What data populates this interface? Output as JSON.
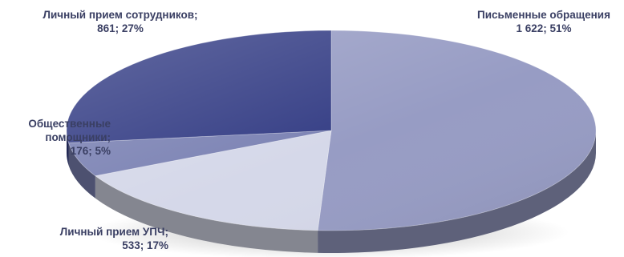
{
  "chart_data": {
    "type": "pie",
    "title": "",
    "slices": [
      {
        "name": "Письменные обращения",
        "value": 1622,
        "value_label": "1 622",
        "percent": "51%",
        "color": "#979cc4"
      },
      {
        "name": "Личный прием УПЧ",
        "value": 533,
        "value_label": "533",
        "percent": "17%",
        "color": "#d5d8e9"
      },
      {
        "name": "Общественные помощники",
        "value": 176,
        "value_label": "176",
        "percent": "5%",
        "color": "#7c83b4"
      },
      {
        "name": "Личный прием сотрудников",
        "value": 861,
        "value_label": "861",
        "percent": "27%",
        "color": "#363f86"
      }
    ]
  }
}
